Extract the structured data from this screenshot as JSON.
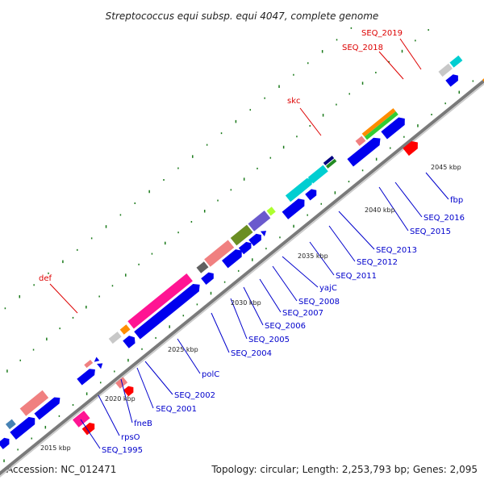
{
  "title": "Streptococcus equi subsp. equi 4047, complete genome",
  "accession": "Accession: NC_012471",
  "summary": "Topology: circular; Length: 2,253,793 bp; Genes: 2,095",
  "colors": {
    "backbone": "#808080",
    "gene_blue": "#0000ee",
    "label_blue": "#0000cc",
    "label_red": "#dd0000",
    "gc_dots": "#1a7a1a"
  },
  "kbp_ticks": [
    "2015 kbp",
    "2020 kbp",
    "2025 kbp",
    "2030 kbp",
    "2035 kbp",
    "2040 kbp",
    "2045 kbp"
  ],
  "blue_labels": [
    "SEQ_1995",
    "rpsO",
    "fneB",
    "SEQ_2001",
    "SEQ_2002",
    "polC",
    "SEQ_2004",
    "SEQ_2005",
    "SEQ_2006",
    "SEQ_2007",
    "SEQ_2008",
    "yajC",
    "SEQ_2011",
    "SEQ_2012",
    "SEQ_2013",
    "SEQ_2015",
    "SEQ_2016",
    "fbp"
  ],
  "red_labels": [
    "def",
    "skc",
    "SEQ_2018",
    "SEQ_2019"
  ]
}
